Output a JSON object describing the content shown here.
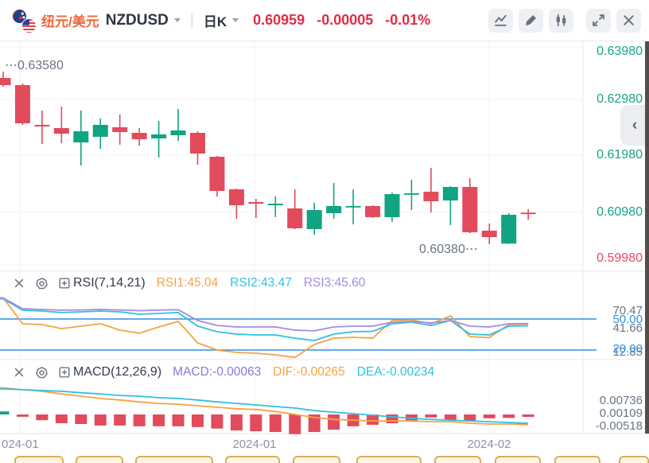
{
  "topbar": {
    "pair_cn": "纽元/美元",
    "symbol": "NZDUSD",
    "period": "日K",
    "price": "0.60959",
    "change": "-0.00005",
    "change_pct": "-0.01%",
    "icons": [
      "indicator-line-icon",
      "draw-pencil-icon",
      "candlestick-icon",
      "fullscreen-expand-icon",
      "close-icon"
    ]
  },
  "price_axis": {
    "labels": [
      {
        "text": "0.63980",
        "color": "axis_green"
      },
      {
        "text": "0.62980",
        "color": "axis_green"
      },
      {
        "text": "0.61980",
        "color": "axis_green"
      },
      {
        "text": "0.60980",
        "color": "axis_green"
      },
      {
        "text": "0.59980",
        "color": "axis_red"
      }
    ]
  },
  "main": {
    "high_label": "0.63580",
    "low_label": "0.60380",
    "marker_dots": "⋯"
  },
  "rsi": {
    "title": "RSI(7,14,21)",
    "v1": "RSI1:45.04",
    "v2": "RSI2:43.47",
    "v3": "RSI3:45.60",
    "axis_max": "70.47",
    "axis_line_upper": "50.00",
    "axis_mid": "41.66",
    "axis_line_lower": "20.00",
    "axis_min": "12.85"
  },
  "macd": {
    "title": "MACD(12,26,9)",
    "v_macd": "MACD:-0.00063",
    "v_dif": "DIF:-0.00265",
    "v_dea": "DEA:-0.00234",
    "axis_max": "0.00736",
    "axis_mid": "0.00109",
    "axis_min": "-0.00518"
  },
  "time_axis": {
    "left": "024-01",
    "mid": "2024-01",
    "right": "2024-02"
  },
  "side": {
    "collapse_chevron": "‹"
  },
  "bottom_bar": {
    "button_count": 10
  },
  "colors": {
    "up": "#10a482",
    "down": "#e14b5c",
    "brand_orange": "#f0663a",
    "price_red": "#e22c44",
    "axis_green": "#18a287",
    "axis_red": "#e8495f",
    "rsi1": "#f5a243",
    "rsi2": "#2fc1e0",
    "rsi3": "#a58be0",
    "level_blue": "#2f8fe8",
    "dif": "#f5a243",
    "dea": "#2fc1e0",
    "macd_label": "#8f76db",
    "grid": "#f1f2f5",
    "divider": "#e7e9ed",
    "axis_gray": "#6b7487"
  },
  "chart_data": {
    "type": "candlestick",
    "panes": [
      "price",
      "RSI(7,14,21)",
      "MACD(12,26,9)"
    ],
    "price_axis_ticks": [
      0.6398,
      0.6298,
      0.6198,
      0.6098,
      0.5998
    ],
    "high_marker": 0.6358,
    "low_marker": 0.6038,
    "x_gridline_labels": [
      "2024-01",
      "2024-01",
      "2024-02"
    ],
    "candles": [
      [
        0.63463,
        0.6358,
        0.633,
        0.63331
      ],
      [
        0.63331,
        0.6336,
        0.62593,
        0.62622
      ],
      [
        0.62593,
        0.62858,
        0.62238,
        0.62563
      ],
      [
        0.62534,
        0.62932,
        0.62253,
        0.6243
      ],
      [
        0.62268,
        0.62858,
        0.6184,
        0.62474
      ],
      [
        0.62371,
        0.62711,
        0.6215,
        0.62593
      ],
      [
        0.62548,
        0.62784,
        0.62224,
        0.6246
      ],
      [
        0.62445,
        0.62534,
        0.62209,
        0.62327
      ],
      [
        0.62342,
        0.62666,
        0.61987,
        0.62416
      ],
      [
        0.62401,
        0.62888,
        0.62297,
        0.62489
      ],
      [
        0.62445,
        0.62474,
        0.61854,
        0.62061
      ],
      [
        0.62002,
        0.62017,
        0.61264,
        0.61367
      ],
      [
        0.61397,
        0.61412,
        0.60851,
        0.61102
      ],
      [
        0.61161,
        0.6122,
        0.60866,
        0.61131
      ],
      [
        0.61102,
        0.61264,
        0.60881,
        0.61131
      ],
      [
        0.61043,
        0.61397,
        0.60659,
        0.60674
      ],
      [
        0.60659,
        0.61146,
        0.60556,
        0.61013
      ],
      [
        0.60954,
        0.61515,
        0.60851,
        0.61087
      ],
      [
        0.61072,
        0.61397,
        0.60748,
        0.61087
      ],
      [
        0.61087,
        0.61102,
        0.60866,
        0.60881
      ],
      [
        0.60881,
        0.61338,
        0.60792,
        0.61308
      ],
      [
        0.61308,
        0.61574,
        0.61013,
        0.61323
      ],
      [
        0.61353,
        0.61796,
        0.60969,
        0.61176
      ],
      [
        0.6119,
        0.61456,
        0.60733,
        0.61441
      ],
      [
        0.61441,
        0.61604,
        0.60585,
        0.606
      ],
      [
        0.6063,
        0.60762,
        0.6038,
        0.60511
      ],
      [
        0.6039,
        0.60954,
        0.60385,
        0.60925
      ],
      [
        0.60964,
        0.61028,
        0.60836,
        0.60959
      ]
    ],
    "rsi": {
      "params": [
        7,
        14,
        21
      ],
      "levels": [
        50,
        20
      ],
      "rsi1": [
        70.47,
        45.4,
        44.6,
        40.8,
        43.1,
        45.4,
        39.2,
        36.2,
        42.3,
        47.7,
        26.9,
        20.0,
        17.7,
        16.9,
        15.4,
        12.85,
        25.4,
        31.5,
        32.3,
        31.5,
        48.5,
        49.2,
        45.4,
        53.0,
        33.0,
        32.0,
        44.6,
        45.04
      ],
      "rsi2": [
        69.5,
        58.5,
        57.7,
        56.2,
        56.9,
        57.7,
        56.9,
        54.6,
        55.4,
        56.2,
        43.1,
        37.7,
        35.4,
        34.6,
        34.6,
        31.5,
        29.2,
        35.4,
        37.7,
        38.1,
        45.4,
        46.9,
        43.8,
        48.5,
        35.4,
        34.6,
        43.1,
        43.47
      ],
      "rsi3": [
        70.3,
        60.0,
        59.2,
        58.5,
        58.8,
        59.2,
        58.8,
        58.1,
        58.5,
        59.0,
        48.5,
        43.8,
        42.3,
        42.3,
        42.3,
        39.2,
        38.5,
        42.3,
        43.1,
        43.1,
        46.9,
        47.7,
        46.2,
        48.5,
        43.1,
        42.3,
        45.4,
        45.6
      ],
      "last": {
        "rsi1": 45.04,
        "rsi2": 43.47,
        "rsi3": 45.6
      }
    },
    "macd": {
      "params": [
        12,
        26,
        9
      ],
      "dif": [
        0.007,
        0.0065,
        0.0061,
        0.0054,
        0.0048,
        0.0042,
        0.0038,
        0.0033,
        0.0029,
        0.0027,
        0.0023,
        0.0019,
        0.0015,
        0.0013,
        0.0008,
        0.0,
        -0.0008,
        -0.0013,
        -0.0015,
        -0.0017,
        -0.0017,
        -0.0017,
        -0.0019,
        -0.0019,
        -0.0023,
        -0.0025,
        -0.0025,
        -0.00265
      ],
      "dea": [
        0.0067,
        0.0065,
        0.0063,
        0.0061,
        0.0057,
        0.0054,
        0.005,
        0.0048,
        0.0044,
        0.0042,
        0.0038,
        0.0033,
        0.0029,
        0.0025,
        0.0021,
        0.0017,
        0.001,
        0.0006,
        0.0002,
        -0.0002,
        -0.0006,
        -0.001,
        -0.0013,
        -0.0015,
        -0.0017,
        -0.0019,
        -0.0021,
        -0.00234
      ],
      "hist": [
        0.0008,
        -0.0006,
        -0.0015,
        -0.0023,
        -0.0025,
        -0.0029,
        -0.0029,
        -0.0031,
        -0.0031,
        -0.0031,
        -0.0033,
        -0.0037,
        -0.0042,
        -0.0044,
        -0.0046,
        -0.00518,
        -0.0046,
        -0.004,
        -0.0031,
        -0.0027,
        -0.0023,
        -0.0019,
        -0.0008,
        -0.0014,
        -0.0017,
        -0.001,
        -0.0009,
        -0.00063
      ],
      "last": {
        "macd": -0.00063,
        "dif": -0.00265,
        "dea": -0.00234
      }
    }
  }
}
